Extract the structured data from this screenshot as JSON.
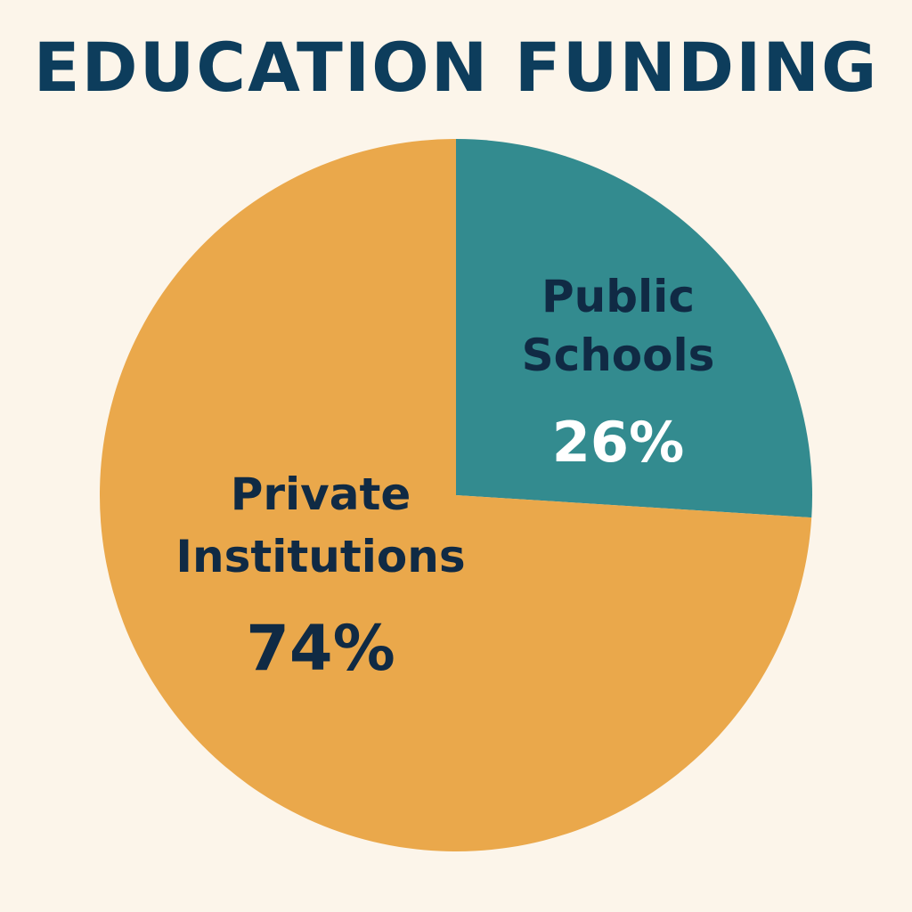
{
  "title": "EDUCATION FUNDING",
  "colors": {
    "background": "#fcf5ea",
    "title": "#0d3d5c",
    "label_dark": "#102a44",
    "label_light": "#ffffff"
  },
  "chart_data": {
    "type": "pie",
    "title": "EDUCATION FUNDING",
    "start_angle_deg": 0,
    "direction": "clockwise",
    "slices": [
      {
        "label_lines": [
          "Public",
          "Schools"
        ],
        "value": 26,
        "value_label": "26%",
        "color": "#338b8f",
        "value_color": "#ffffff"
      },
      {
        "label_lines": [
          "Private",
          "Institutions"
        ],
        "value": 74,
        "value_label": "74%",
        "color": "#eaa84b",
        "value_color": "#102a44"
      }
    ],
    "legend": "none"
  }
}
